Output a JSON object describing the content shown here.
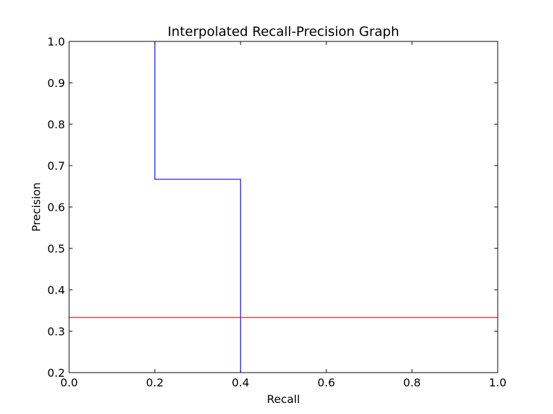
{
  "chart_data": {
    "type": "line",
    "title": "Interpolated Recall-Precision Graph",
    "xlabel": "Recall",
    "ylabel": "Precision",
    "xlim": [
      0.0,
      1.0
    ],
    "ylim": [
      0.2,
      1.0
    ],
    "xticks": [
      "0.0",
      "0.2",
      "0.4",
      "0.6",
      "0.8",
      "1.0"
    ],
    "yticks": [
      "0.2",
      "0.3",
      "0.4",
      "0.5",
      "0.6",
      "0.7",
      "0.8",
      "0.9",
      "1.0"
    ],
    "grid": false,
    "series": [
      {
        "color": "#0000ff",
        "step": true,
        "x": [
          0.2,
          0.2,
          0.4,
          0.4
        ],
        "y": [
          1.0,
          0.667,
          0.667,
          0.2
        ]
      },
      {
        "color": "#ff0000",
        "x": [
          0.0,
          1.0
        ],
        "y": [
          0.333,
          0.333
        ]
      }
    ]
  }
}
